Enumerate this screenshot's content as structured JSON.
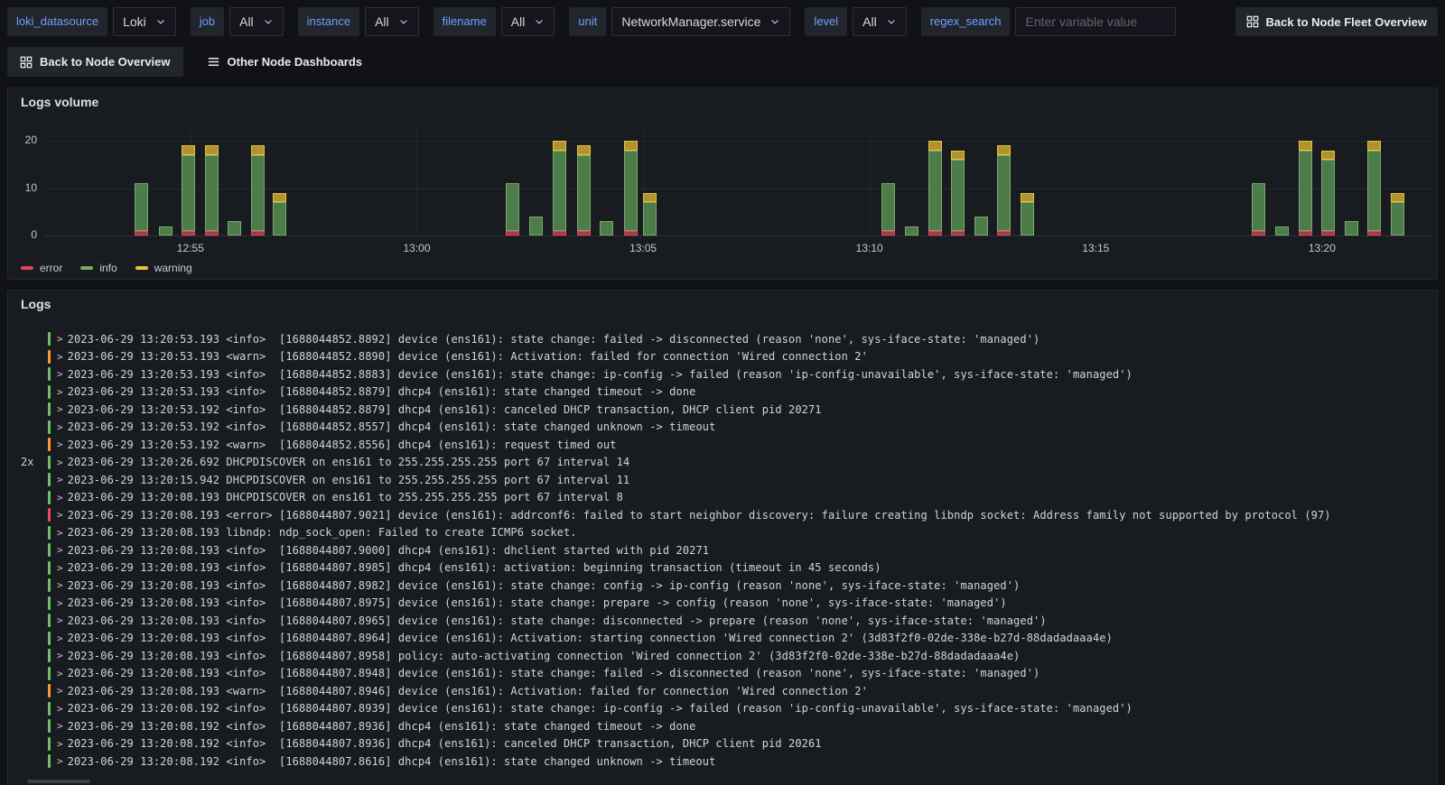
{
  "toolbar": {
    "variables": [
      {
        "type": "select",
        "label": "loki_datasource",
        "value": "Loki"
      },
      {
        "type": "select",
        "label": "job",
        "value": "All"
      },
      {
        "type": "select",
        "label": "instance",
        "value": "All"
      },
      {
        "type": "select",
        "label": "filename",
        "value": "All"
      },
      {
        "type": "select",
        "label": "unit",
        "value": "NetworkManager.service"
      },
      {
        "type": "select",
        "label": "level",
        "value": "All"
      },
      {
        "type": "input",
        "label": "regex_search",
        "value": "",
        "placeholder": "Enter variable value"
      }
    ],
    "fleet_button_label": "Back to Node Fleet Overview",
    "back_button_label": "Back to Node Overview",
    "other_dashboards_label": "Other Node Dashboards"
  },
  "colors": {
    "accent_blue": "#6e9fff",
    "page_bg": "#111217",
    "panel_bg": "#181b1f",
    "chart": {
      "error": {
        "fill": "#a03a46",
        "stroke": "#e0455c"
      },
      "info": {
        "fill": "#4d7c4a",
        "stroke": "#76ab69"
      },
      "warning": {
        "fill": "#b2922f",
        "stroke": "#e6c540"
      }
    },
    "log_levels": {
      "info": "#73bf69",
      "warn": "#ff9830",
      "error": "#f2495c"
    }
  },
  "logs_volume": {
    "title": "Logs volume",
    "chart_data": {
      "type": "bar",
      "stacked": true,
      "title": "Logs volume",
      "x_unit": "minutes_after_12:50",
      "x_range": [
        1.77,
        32.42
      ],
      "x_tick_labels": [
        {
          "label": "12:55",
          "t": 5
        },
        {
          "label": "13:00",
          "t": 10
        },
        {
          "label": "13:05",
          "t": 15
        },
        {
          "label": "13:10",
          "t": 20
        },
        {
          "label": "13:15",
          "t": 25
        },
        {
          "label": "13:20",
          "t": 30
        }
      ],
      "y_ticks": [
        0,
        10,
        20
      ],
      "y_max": 22.5,
      "grid": true,
      "legend": [
        "error",
        "info",
        "warning"
      ],
      "legend_position": "bottom-left",
      "series_keys": [
        "error",
        "info",
        "warning"
      ],
      "bars": [
        {
          "t": 3.9,
          "error": 1,
          "info": 10,
          "warning": 0
        },
        {
          "t": 4.44,
          "error": 0,
          "info": 2,
          "warning": 0
        },
        {
          "t": 4.94,
          "error": 1,
          "info": 16,
          "warning": 2
        },
        {
          "t": 5.46,
          "error": 1,
          "info": 16,
          "warning": 2
        },
        {
          "t": 5.96,
          "error": 0,
          "info": 3,
          "warning": 0
        },
        {
          "t": 6.48,
          "error": 1,
          "info": 16,
          "warning": 2
        },
        {
          "t": 6.96,
          "error": 0,
          "info": 7,
          "warning": 2
        },
        {
          "t": 12.1,
          "error": 1,
          "info": 10,
          "warning": 0
        },
        {
          "t": 12.62,
          "error": 0,
          "info": 4,
          "warning": 0
        },
        {
          "t": 13.14,
          "error": 1,
          "info": 17,
          "warning": 2
        },
        {
          "t": 13.68,
          "error": 1,
          "info": 16,
          "warning": 2
        },
        {
          "t": 14.18,
          "error": 0,
          "info": 3,
          "warning": 0
        },
        {
          "t": 14.72,
          "error": 1,
          "info": 17,
          "warning": 2
        },
        {
          "t": 15.14,
          "error": 0,
          "info": 7,
          "warning": 2
        },
        {
          "t": 20.4,
          "error": 1,
          "info": 10,
          "warning": 0
        },
        {
          "t": 20.92,
          "error": 0,
          "info": 2,
          "warning": 0
        },
        {
          "t": 21.44,
          "error": 1,
          "info": 17,
          "warning": 2
        },
        {
          "t": 21.94,
          "error": 1,
          "info": 15,
          "warning": 2
        },
        {
          "t": 22.46,
          "error": 0,
          "info": 4,
          "warning": 0
        },
        {
          "t": 22.96,
          "error": 1,
          "info": 16,
          "warning": 2
        },
        {
          "t": 23.48,
          "error": 0,
          "info": 7,
          "warning": 2
        },
        {
          "t": 28.58,
          "error": 1,
          "info": 10,
          "warning": 0
        },
        {
          "t": 29.1,
          "error": 0,
          "info": 2,
          "warning": 0
        },
        {
          "t": 29.62,
          "error": 1,
          "info": 17,
          "warning": 2
        },
        {
          "t": 30.12,
          "error": 1,
          "info": 15,
          "warning": 2
        },
        {
          "t": 30.64,
          "error": 0,
          "info": 3,
          "warning": 0
        },
        {
          "t": 31.14,
          "error": 1,
          "info": 17,
          "warning": 2
        },
        {
          "t": 31.66,
          "error": 0,
          "info": 7,
          "warning": 2
        }
      ]
    }
  },
  "logs": {
    "title": "Logs",
    "rows": [
      {
        "count": "",
        "level": "info",
        "text": "2023-06-29 13:20:53.193 <info>  [1688044852.8892] device (ens161): state change: failed -> disconnected (reason 'none', sys-iface-state: 'managed')"
      },
      {
        "count": "",
        "level": "warn",
        "text": "2023-06-29 13:20:53.193 <warn>  [1688044852.8890] device (ens161): Activation: failed for connection 'Wired connection 2'"
      },
      {
        "count": "",
        "level": "info",
        "text": "2023-06-29 13:20:53.193 <info>  [1688044852.8883] device (ens161): state change: ip-config -> failed (reason 'ip-config-unavailable', sys-iface-state: 'managed')"
      },
      {
        "count": "",
        "level": "info",
        "text": "2023-06-29 13:20:53.193 <info>  [1688044852.8879] dhcp4 (ens161): state changed timeout -> done"
      },
      {
        "count": "",
        "level": "info",
        "text": "2023-06-29 13:20:53.192 <info>  [1688044852.8879] dhcp4 (ens161): canceled DHCP transaction, DHCP client pid 20271"
      },
      {
        "count": "",
        "level": "info",
        "text": "2023-06-29 13:20:53.192 <info>  [1688044852.8557] dhcp4 (ens161): state changed unknown -> timeout"
      },
      {
        "count": "",
        "level": "warn",
        "text": "2023-06-29 13:20:53.192 <warn>  [1688044852.8556] dhcp4 (ens161): request timed out"
      },
      {
        "count": "2x",
        "level": "info",
        "text": "2023-06-29 13:20:26.692 DHCPDISCOVER on ens161 to 255.255.255.255 port 67 interval 14"
      },
      {
        "count": "",
        "level": "info",
        "text": "2023-06-29 13:20:15.942 DHCPDISCOVER on ens161 to 255.255.255.255 port 67 interval 11"
      },
      {
        "count": "",
        "level": "info",
        "text": "2023-06-29 13:20:08.193 DHCPDISCOVER on ens161 to 255.255.255.255 port 67 interval 8"
      },
      {
        "count": "",
        "level": "error",
        "text": "2023-06-29 13:20:08.193 <error> [1688044807.9021] device (ens161): addrconf6: failed to start neighbor discovery: failure creating libndp socket: Address family not supported by protocol (97)"
      },
      {
        "count": "",
        "level": "info",
        "text": "2023-06-29 13:20:08.193 libndp: ndp_sock_open: Failed to create ICMP6 socket."
      },
      {
        "count": "",
        "level": "info",
        "text": "2023-06-29 13:20:08.193 <info>  [1688044807.9000] dhcp4 (ens161): dhclient started with pid 20271"
      },
      {
        "count": "",
        "level": "info",
        "text": "2023-06-29 13:20:08.193 <info>  [1688044807.8985] dhcp4 (ens161): activation: beginning transaction (timeout in 45 seconds)"
      },
      {
        "count": "",
        "level": "info",
        "text": "2023-06-29 13:20:08.193 <info>  [1688044807.8982] device (ens161): state change: config -> ip-config (reason 'none', sys-iface-state: 'managed')"
      },
      {
        "count": "",
        "level": "info",
        "text": "2023-06-29 13:20:08.193 <info>  [1688044807.8975] device (ens161): state change: prepare -> config (reason 'none', sys-iface-state: 'managed')"
      },
      {
        "count": "",
        "level": "info",
        "text": "2023-06-29 13:20:08.193 <info>  [1688044807.8965] device (ens161): state change: disconnected -> prepare (reason 'none', sys-iface-state: 'managed')"
      },
      {
        "count": "",
        "level": "info",
        "text": "2023-06-29 13:20:08.193 <info>  [1688044807.8964] device (ens161): Activation: starting connection 'Wired connection 2' (3d83f2f0-02de-338e-b27d-88dadadaaa4e)"
      },
      {
        "count": "",
        "level": "info",
        "text": "2023-06-29 13:20:08.193 <info>  [1688044807.8958] policy: auto-activating connection 'Wired connection 2' (3d83f2f0-02de-338e-b27d-88dadadaaa4e)"
      },
      {
        "count": "",
        "level": "info",
        "text": "2023-06-29 13:20:08.193 <info>  [1688044807.8948] device (ens161): state change: failed -> disconnected (reason 'none', sys-iface-state: 'managed')"
      },
      {
        "count": "",
        "level": "warn",
        "text": "2023-06-29 13:20:08.193 <warn>  [1688044807.8946] device (ens161): Activation: failed for connection 'Wired connection 2'"
      },
      {
        "count": "",
        "level": "info",
        "text": "2023-06-29 13:20:08.192 <info>  [1688044807.8939] device (ens161): state change: ip-config -> failed (reason 'ip-config-unavailable', sys-iface-state: 'managed')"
      },
      {
        "count": "",
        "level": "info",
        "text": "2023-06-29 13:20:08.192 <info>  [1688044807.8936] dhcp4 (ens161): state changed timeout -> done"
      },
      {
        "count": "",
        "level": "info",
        "text": "2023-06-29 13:20:08.192 <info>  [1688044807.8936] dhcp4 (ens161): canceled DHCP transaction, DHCP client pid 20261"
      },
      {
        "count": "",
        "level": "info",
        "text": "2023-06-29 13:20:08.192 <info>  [1688044807.8616] dhcp4 (ens161): state changed unknown -> timeout"
      }
    ]
  }
}
